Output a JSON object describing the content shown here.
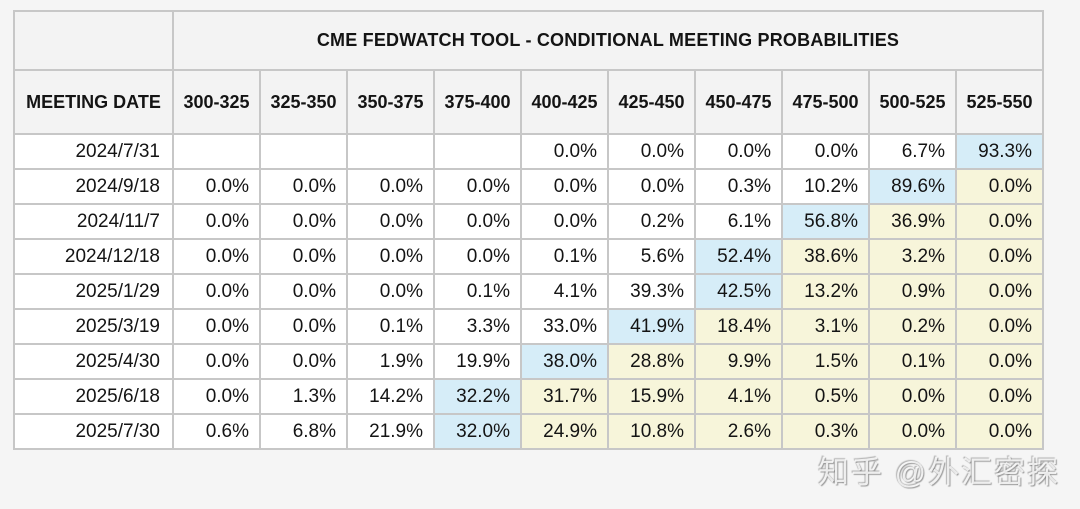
{
  "colors": {
    "page_background": "#f5f5f5",
    "header_cell_background": "#f3f3f3",
    "cell_background": "#ffffff",
    "highlight_blue": "#d6edf8",
    "highlight_yellow": "#f7f5da",
    "border": "#c7c7c7",
    "text": "#141414"
  },
  "watermark": {
    "text": "知乎 @外汇密探"
  },
  "chart_data": {
    "type": "table",
    "title": "CME FEDWATCH TOOL - CONDITIONAL MEETING PROBABILITIES",
    "row_header": "MEETING DATE",
    "columns": [
      "300-325",
      "325-350",
      "350-375",
      "375-400",
      "400-425",
      "425-450",
      "450-475",
      "475-500",
      "500-525",
      "525-550"
    ],
    "rows": [
      {
        "date": "2024/7/31",
        "values": [
          "",
          "",
          "",
          "",
          "0.0%",
          "0.0%",
          "0.0%",
          "0.0%",
          "6.7%",
          "93.3%"
        ],
        "highlights": [
          "",
          "",
          "",
          "",
          "",
          "",
          "",
          "",
          "",
          "blue"
        ]
      },
      {
        "date": "2024/9/18",
        "values": [
          "0.0%",
          "0.0%",
          "0.0%",
          "0.0%",
          "0.0%",
          "0.0%",
          "0.3%",
          "10.2%",
          "89.6%",
          "0.0%"
        ],
        "highlights": [
          "",
          "",
          "",
          "",
          "",
          "",
          "",
          "",
          "blue",
          "yellow"
        ]
      },
      {
        "date": "2024/11/7",
        "values": [
          "0.0%",
          "0.0%",
          "0.0%",
          "0.0%",
          "0.0%",
          "0.2%",
          "6.1%",
          "56.8%",
          "36.9%",
          "0.0%"
        ],
        "highlights": [
          "",
          "",
          "",
          "",
          "",
          "",
          "",
          "blue",
          "yellow",
          "yellow"
        ]
      },
      {
        "date": "2024/12/18",
        "values": [
          "0.0%",
          "0.0%",
          "0.0%",
          "0.0%",
          "0.1%",
          "5.6%",
          "52.4%",
          "38.6%",
          "3.2%",
          "0.0%"
        ],
        "highlights": [
          "",
          "",
          "",
          "",
          "",
          "",
          "blue",
          "yellow",
          "yellow",
          "yellow"
        ]
      },
      {
        "date": "2025/1/29",
        "values": [
          "0.0%",
          "0.0%",
          "0.0%",
          "0.1%",
          "4.1%",
          "39.3%",
          "42.5%",
          "13.2%",
          "0.9%",
          "0.0%"
        ],
        "highlights": [
          "",
          "",
          "",
          "",
          "",
          "",
          "blue",
          "yellow",
          "yellow",
          "yellow"
        ]
      },
      {
        "date": "2025/3/19",
        "values": [
          "0.0%",
          "0.0%",
          "0.1%",
          "3.3%",
          "33.0%",
          "41.9%",
          "18.4%",
          "3.1%",
          "0.2%",
          "0.0%"
        ],
        "highlights": [
          "",
          "",
          "",
          "",
          "",
          "blue",
          "yellow",
          "yellow",
          "yellow",
          "yellow"
        ]
      },
      {
        "date": "2025/4/30",
        "values": [
          "0.0%",
          "0.0%",
          "1.9%",
          "19.9%",
          "38.0%",
          "28.8%",
          "9.9%",
          "1.5%",
          "0.1%",
          "0.0%"
        ],
        "highlights": [
          "",
          "",
          "",
          "",
          "blue",
          "yellow",
          "yellow",
          "yellow",
          "yellow",
          "yellow"
        ]
      },
      {
        "date": "2025/6/18",
        "values": [
          "0.0%",
          "1.3%",
          "14.2%",
          "32.2%",
          "31.7%",
          "15.9%",
          "4.1%",
          "0.5%",
          "0.0%",
          "0.0%"
        ],
        "highlights": [
          "",
          "",
          "",
          "blue",
          "yellow",
          "yellow",
          "yellow",
          "yellow",
          "yellow",
          "yellow"
        ]
      },
      {
        "date": "2025/7/30",
        "values": [
          "0.6%",
          "6.8%",
          "21.9%",
          "32.0%",
          "24.9%",
          "10.8%",
          "2.6%",
          "0.3%",
          "0.0%",
          "0.0%"
        ],
        "highlights": [
          "",
          "",
          "",
          "blue",
          "yellow",
          "yellow",
          "yellow",
          "yellow",
          "yellow",
          "yellow"
        ]
      }
    ]
  }
}
